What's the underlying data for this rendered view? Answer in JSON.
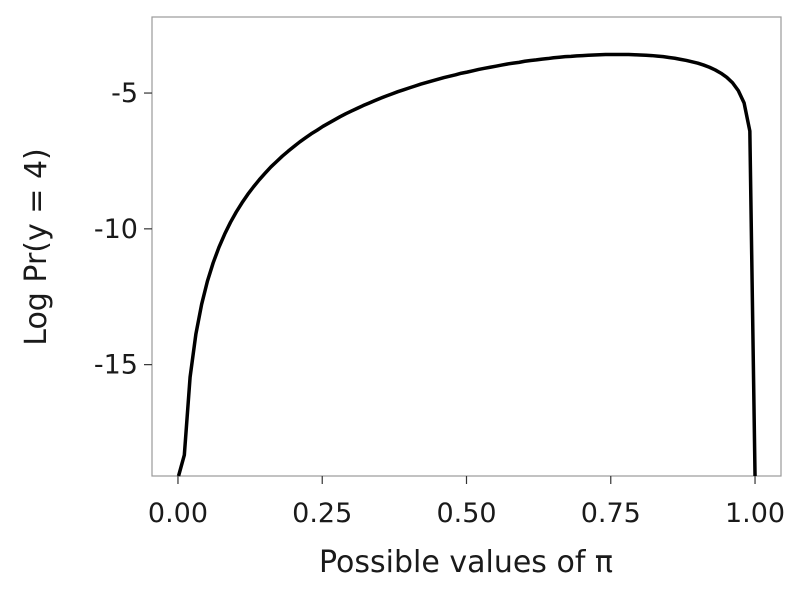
{
  "chart_data": {
    "type": "line",
    "title": "",
    "xlabel": "Possible values of π",
    "ylabel": "Log Pr(y = 4)",
    "xlim": [
      -0.045,
      1.045
    ],
    "ylim": [
      -19.1,
      -2.2
    ],
    "x_ticks": [
      0,
      0.25,
      0.5,
      0.75,
      1
    ],
    "x_tick_labels": [
      "0.00",
      "0.25",
      "0.50",
      "0.75",
      "1.00"
    ],
    "y_ticks": [
      -15,
      -10,
      -5
    ],
    "y_tick_labels": [
      "-15",
      "-10",
      "-5"
    ],
    "grid": false,
    "legend": "none",
    "line_color": "#000000",
    "series": [
      {
        "x": [
          0.001,
          0.011,
          0.021,
          0.031,
          0.041,
          0.051,
          0.061,
          0.071,
          0.081,
          0.091,
          0.101,
          0.111,
          0.121,
          0.131,
          0.141,
          0.151,
          0.161,
          0.171,
          0.181,
          0.191,
          0.201,
          0.211,
          0.221,
          0.231,
          0.241,
          0.251,
          0.261,
          0.271,
          0.281,
          0.291,
          0.301,
          0.311,
          0.321,
          0.331,
          0.341,
          0.351,
          0.361,
          0.371,
          0.381,
          0.391,
          0.401,
          0.411,
          0.421,
          0.431,
          0.441,
          0.451,
          0.461,
          0.471,
          0.481,
          0.491,
          0.501,
          0.511,
          0.521,
          0.531,
          0.541,
          0.551,
          0.561,
          0.571,
          0.581,
          0.591,
          0.601,
          0.611,
          0.621,
          0.631,
          0.641,
          0.651,
          0.661,
          0.671,
          0.681,
          0.691,
          0.701,
          0.711,
          0.721,
          0.731,
          0.741,
          0.751,
          0.761,
          0.771,
          0.781,
          0.791,
          0.801,
          0.811,
          0.821,
          0.831,
          0.841,
          0.851,
          0.861,
          0.871,
          0.881,
          0.891,
          0.901,
          0.911,
          0.921,
          0.931,
          0.941,
          0.951,
          0.961,
          0.971,
          0.981,
          0.991,
          1.0
        ],
        "y": [
          -19.1,
          -18.33,
          -15.46,
          -13.88,
          -12.78,
          -11.93,
          -11.25,
          -10.68,
          -10.19,
          -9.76,
          -9.38,
          -9.04,
          -8.73,
          -8.45,
          -8.19,
          -7.95,
          -7.72,
          -7.52,
          -7.32,
          -7.14,
          -6.97,
          -6.8,
          -6.65,
          -6.5,
          -6.37,
          -6.23,
          -6.11,
          -5.99,
          -5.87,
          -5.76,
          -5.66,
          -5.56,
          -5.46,
          -5.37,
          -5.28,
          -5.19,
          -5.11,
          -5.03,
          -4.95,
          -4.88,
          -4.81,
          -4.74,
          -4.67,
          -4.61,
          -4.55,
          -4.49,
          -4.43,
          -4.38,
          -4.33,
          -4.27,
          -4.23,
          -4.18,
          -4.13,
          -4.09,
          -4.05,
          -4.01,
          -3.97,
          -3.93,
          -3.9,
          -3.87,
          -3.83,
          -3.8,
          -3.78,
          -3.75,
          -3.73,
          -3.7,
          -3.68,
          -3.66,
          -3.65,
          -3.63,
          -3.62,
          -3.61,
          -3.6,
          -3.59,
          -3.58,
          -3.58,
          -3.58,
          -3.58,
          -3.58,
          -3.59,
          -3.6,
          -3.61,
          -3.62,
          -3.64,
          -3.66,
          -3.69,
          -3.72,
          -3.76,
          -3.8,
          -3.85,
          -3.9,
          -3.97,
          -4.05,
          -4.15,
          -4.27,
          -4.42,
          -4.62,
          -4.91,
          -5.36,
          -6.4,
          -19.1
        ]
      }
    ]
  }
}
